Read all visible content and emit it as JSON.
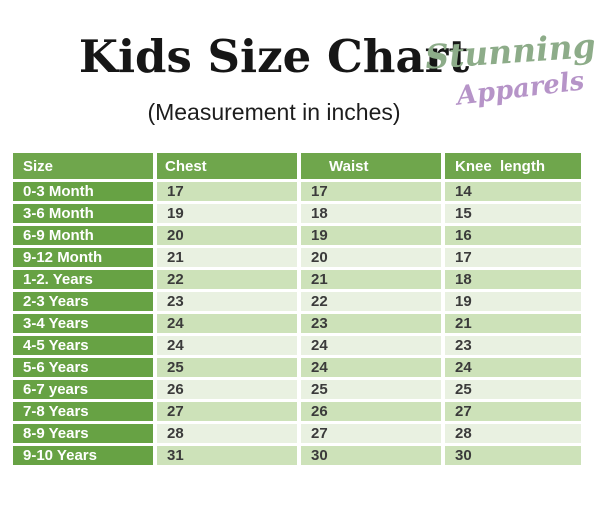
{
  "header": {
    "title": "Kids Size Chart",
    "subtitle": "(Measurement in inches)",
    "logo": {
      "line1": "Stunning",
      "line2": "Apparels",
      "line1_color": "#8DAC89",
      "line2_color": "#B694C8"
    }
  },
  "chart_data": {
    "type": "table",
    "title": "Kids Size Chart",
    "subtitle": "(Measurement in inches)",
    "units": "inches",
    "columns": [
      "Size",
      "Chest",
      "Waist",
      "Knee  length"
    ],
    "rows": [
      [
        "0-3 Month",
        "17",
        "17",
        "14"
      ],
      [
        "3-6 Month",
        "19",
        "18",
        "15"
      ],
      [
        "6-9 Month",
        "20",
        "19",
        "16"
      ],
      [
        "9-12 Month",
        "21",
        "20",
        "17"
      ],
      [
        "1-2. Years",
        "22",
        "21",
        "18"
      ],
      [
        "2-3 Years",
        "23",
        "22",
        "19"
      ],
      [
        "3-4 Years",
        "24",
        "23",
        "21"
      ],
      [
        "4-5 Years",
        "24",
        "24",
        "23"
      ],
      [
        "5-6 Years",
        "25",
        "24",
        "24"
      ],
      [
        "6-7 years",
        "26",
        "25",
        "25"
      ],
      [
        "7-8 Years",
        "27",
        "26",
        "27"
      ],
      [
        "8-9 Years",
        "28",
        "27",
        "28"
      ],
      [
        "9-10 Years",
        "31",
        "30",
        "30"
      ]
    ]
  },
  "colors": {
    "header_green": "#6FA64C",
    "size_green": "#67A244",
    "row_medium": "#CDE2B9",
    "row_light": "#E9F1E1",
    "text_dark": "#3B3B3B",
    "logo_green": "#8DAC89",
    "logo_purple": "#B694C8"
  }
}
